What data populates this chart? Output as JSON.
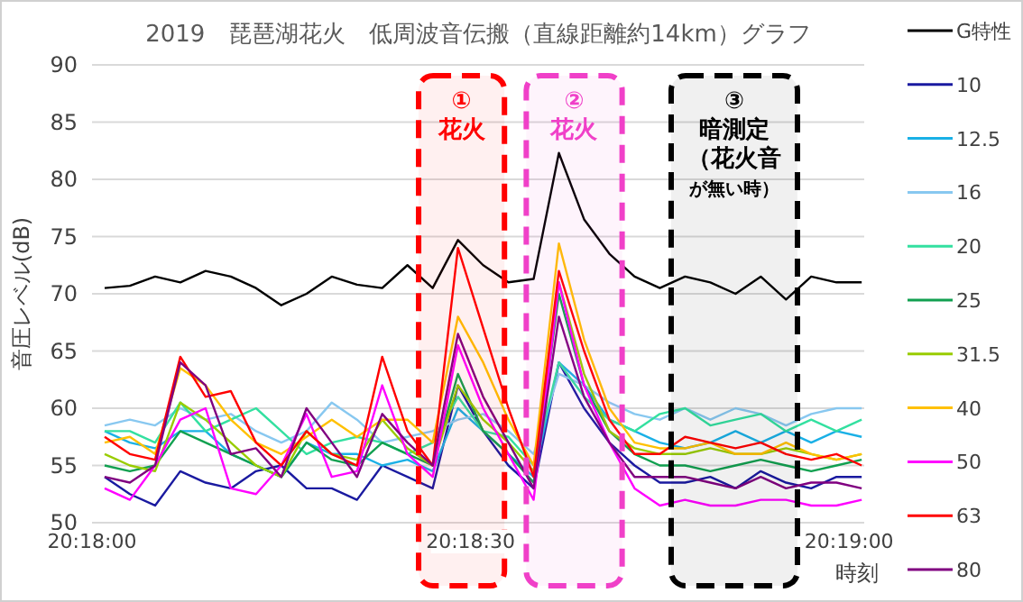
{
  "chart_data": {
    "type": "line",
    "title": "2019　琵琶湖花火　低周波音伝搬（直線距離約14km）グラフ",
    "xlabel": "時刻",
    "ylabel": "音圧レベル(dB)",
    "x": [
      20.300278,
      20.300833,
      20.301389,
      20.301944,
      20.3025,
      20.303056,
      20.303611,
      20.304167,
      20.304722,
      20.305278,
      20.305833,
      20.306389,
      20.306944,
      20.3075,
      20.308056,
      20.308611,
      20.309167,
      20.309722,
      20.310278,
      20.310833,
      20.311389,
      20.311944,
      20.3125,
      20.313056,
      20.313611,
      20.314167,
      20.314722,
      20.315278,
      20.315833,
      20.316389,
      20.316944
    ],
    "xlim": [
      20.3,
      20.317
    ],
    "xticks": [
      {
        "value": 20.3,
        "label": "20:18:00"
      },
      {
        "value": 20.308333,
        "label": "20:18:30"
      },
      {
        "value": 20.316667,
        "label": "20:19:00"
      }
    ],
    "ylim": [
      50,
      90
    ],
    "yticks": [
      50,
      55,
      60,
      65,
      70,
      75,
      80,
      85,
      90
    ],
    "grid": "y",
    "legend": "right",
    "series": [
      {
        "name": "G特性",
        "color": "#000000",
        "values": [
          70.5,
          70.7,
          71.5,
          71,
          72,
          71.5,
          70.5,
          69,
          70,
          71.5,
          70.8,
          70.5,
          72.5,
          70.5,
          74.7,
          72.5,
          71,
          71.3,
          82.3,
          76.5,
          73.5,
          71.5,
          70.5,
          71.5,
          71,
          70,
          71.5,
          69.5,
          71.5,
          71,
          71
        ]
      },
      {
        "name": "10",
        "color": "#1a1aa0",
        "values": [
          54,
          52.5,
          51.5,
          54.5,
          53.5,
          53,
          54.5,
          55,
          53,
          53,
          52,
          55,
          54,
          53,
          62,
          58,
          55,
          53,
          64,
          60,
          57,
          55,
          53.5,
          53.5,
          54,
          53,
          54.5,
          53.5,
          53,
          54,
          54
        ]
      },
      {
        "name": "12.5",
        "color": "#1ab0e6",
        "values": [
          58,
          57,
          56.5,
          58,
          58,
          56,
          55,
          54,
          57,
          56,
          56,
          55,
          55.5,
          54.5,
          60,
          58,
          56,
          54,
          64,
          62,
          59,
          58,
          57,
          56.5,
          57,
          58,
          57,
          58,
          57,
          58,
          57.5
        ]
      },
      {
        "name": "16",
        "color": "#88c8f0",
        "values": [
          58.5,
          59,
          58.5,
          60,
          59,
          59.5,
          58,
          57,
          58,
          60.5,
          59,
          57,
          57.5,
          58,
          59,
          59.5,
          58,
          56,
          63,
          62,
          60.5,
          59.5,
          59,
          60,
          59,
          60,
          59.5,
          58.5,
          59.5,
          60,
          60
        ]
      },
      {
        "name": "20",
        "color": "#33e0a0",
        "values": [
          58,
          58,
          57,
          60.5,
          58,
          59,
          60,
          58,
          56,
          57,
          57.5,
          57,
          56,
          57,
          61,
          58,
          57.5,
          55,
          64,
          61,
          59,
          58,
          59.5,
          60,
          58.5,
          59,
          59.5,
          58,
          59,
          58,
          59
        ]
      },
      {
        "name": "25",
        "color": "#11a050",
        "values": [
          55,
          54.5,
          55,
          58,
          57,
          56,
          55,
          54,
          57,
          55.5,
          55,
          57,
          56,
          55,
          63,
          58,
          56,
          53.5,
          70,
          62,
          58,
          56,
          55,
          55,
          54.5,
          55,
          55.5,
          55,
          54.5,
          55,
          55.5
        ]
      },
      {
        "name": "31.5",
        "color": "#99cc00",
        "values": [
          56,
          55,
          54.5,
          60.5,
          59,
          57,
          55,
          54,
          58,
          56,
          55.5,
          59,
          56.5,
          55,
          62,
          59,
          57,
          54.5,
          71,
          63,
          58,
          56.5,
          56,
          56,
          56.5,
          56,
          56,
          56.5,
          56,
          55.5,
          56
        ]
      },
      {
        "name": "40",
        "color": "#ffc000",
        "values": [
          57,
          57.5,
          56,
          63.5,
          62,
          59,
          57,
          56,
          57.5,
          59,
          57.5,
          59,
          59,
          57,
          68,
          64,
          59,
          55,
          74.4,
          66,
          60,
          57,
          56.5,
          56.5,
          57,
          56,
          56,
          57,
          56,
          55.5,
          56
        ]
      },
      {
        "name": "50",
        "color": "#ff00ff",
        "values": [
          53,
          52,
          55,
          59,
          60,
          53,
          52.5,
          55,
          59.5,
          54,
          54.5,
          62,
          56,
          54,
          65.5,
          60,
          56,
          52,
          71,
          62,
          57,
          53,
          51.5,
          52,
          51.5,
          51.5,
          52,
          52,
          51.5,
          51.5,
          52
        ]
      },
      {
        "name": "63",
        "color": "#ff0000",
        "values": [
          57.5,
          56,
          55.5,
          64.5,
          61,
          61.5,
          57,
          55,
          58,
          56,
          55,
          64.5,
          58,
          55,
          74,
          67,
          60,
          54,
          72,
          65,
          59,
          56,
          56,
          57.5,
          57,
          56.5,
          57,
          56,
          55.5,
          56,
          55
        ]
      },
      {
        "name": "80",
        "color": "#800080",
        "values": [
          54,
          53.5,
          55,
          64,
          62,
          56,
          56.5,
          54,
          60,
          57,
          54,
          59.5,
          57,
          55,
          66.5,
          61,
          57,
          53,
          68,
          61,
          57,
          54,
          54,
          54,
          53.5,
          53,
          54,
          53,
          53.5,
          53.5,
          53
        ]
      }
    ],
    "bands": [
      {
        "axis": "x",
        "from": 20.30719,
        "to": 20.30908,
        "label": "①花火",
        "color": "#ff0000"
      },
      {
        "axis": "x",
        "from": 20.30956,
        "to": 20.31167,
        "label": "②花火",
        "color": "#f040c8"
      },
      {
        "axis": "x",
        "from": 20.31275,
        "to": 20.31553,
        "label": "③暗測定（花火音が無い時）",
        "color": "#000000"
      }
    ]
  }
}
